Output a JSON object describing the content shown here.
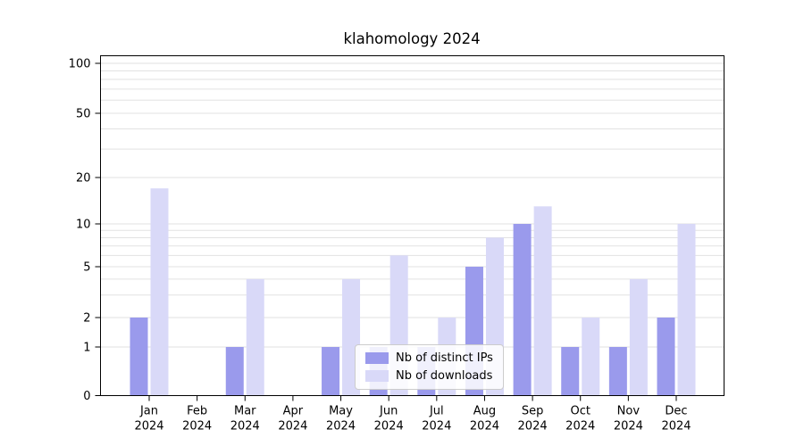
{
  "title": "klahomology 2024",
  "chart_data": {
    "type": "bar",
    "title": "klahomology 2024",
    "categories": [
      "Jan 2024",
      "Feb 2024",
      "Mar 2024",
      "Apr 2024",
      "May 2024",
      "Jun 2024",
      "Jul 2024",
      "Aug 2024",
      "Sep 2024",
      "Oct 2024",
      "Nov 2024",
      "Dec 2024"
    ],
    "series": [
      {
        "name": "Nb of distinct IPs",
        "color": "#9a9aec",
        "values": [
          2,
          0,
          1,
          0,
          1,
          1,
          1,
          5,
          10,
          1,
          1,
          2
        ]
      },
      {
        "name": "Nb of downloads",
        "color": "#d9d9f8",
        "values": [
          17,
          0,
          4,
          0,
          4,
          6,
          2,
          8,
          13,
          2,
          4,
          10
        ]
      }
    ],
    "yscale": "symlog",
    "y_ticks": [
      0,
      1,
      2,
      5,
      10,
      20,
      50,
      100
    ],
    "gridline_values": [
      1,
      2,
      3,
      4,
      5,
      6,
      7,
      8,
      9,
      10,
      20,
      30,
      40,
      50,
      60,
      70,
      80,
      90,
      100
    ],
    "ylim": [
      0,
      115
    ],
    "xlabel": "",
    "ylabel": "",
    "grid": true,
    "legend_position": "lower center"
  }
}
